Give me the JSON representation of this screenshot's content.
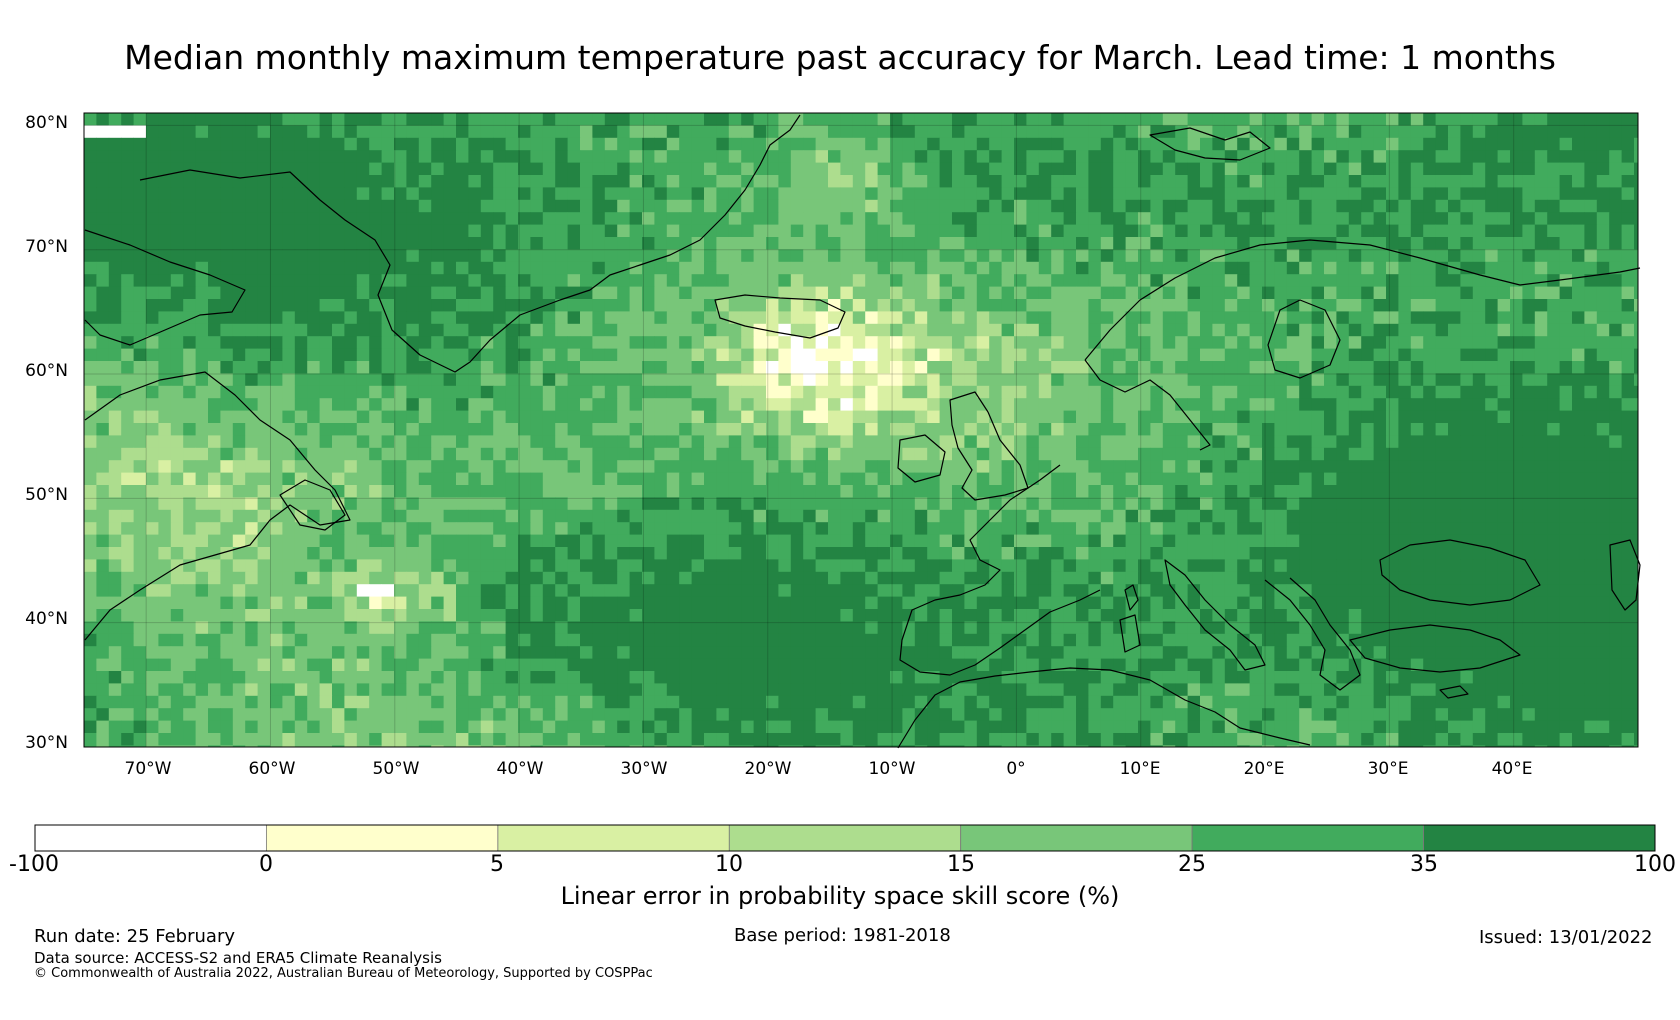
{
  "title": "Median monthly maximum temperature past accuracy for March. Lead time: 1 months",
  "map": {
    "region": "North Atlantic and Europe",
    "lat_labels": [
      "80°N",
      "70°N",
      "60°N",
      "50°N",
      "40°N",
      "30°N"
    ],
    "lon_labels": [
      "70°W",
      "60°W",
      "50°W",
      "40°W",
      "30°W",
      "20°W",
      "10°W",
      "0°",
      "10°E",
      "20°E",
      "30°E",
      "40°E"
    ],
    "extent": {
      "lon_min": -75,
      "lon_max": 50,
      "lat_min": 30,
      "lat_max": 81
    },
    "field": "skill score grid (categorical colour cells)"
  },
  "colorbar": {
    "title": "Linear error in probability space skill score (%)",
    "boundaries": [
      "-100",
      "0",
      "5",
      "10",
      "15",
      "25",
      "35",
      "100"
    ],
    "colors": [
      "#ffffff",
      "#ffffcc",
      "#d9f0a3",
      "#addd8e",
      "#78c679",
      "#41ab5d",
      "#238443"
    ]
  },
  "footer": {
    "run_date": "Run date: 25 February",
    "base_period": "Base period: 1981-2018",
    "issued": "Issued: 13/01/2022",
    "data_source": "Data source: ACCESS-S2 and ERA5 Climate Reanalysis",
    "copyright": "© Commonwealth of Australia 2022, Australian Bureau of Meteorology, Supported by COSPPac"
  }
}
